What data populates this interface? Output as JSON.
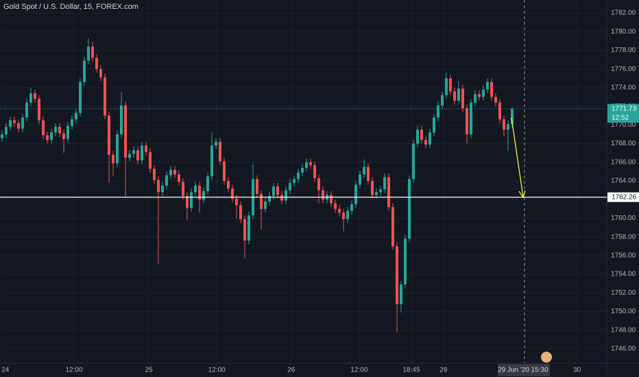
{
  "chart_data": {
    "type": "candlestick",
    "title": "Gold Spot / U.S. Dollar, 15, FOREX.com",
    "up_color": "#26a69a",
    "down_color": "#ef5350",
    "grid": true,
    "open": [
      1768.6,
      1769.0,
      1769.8,
      1770.5,
      1770.2,
      1769.6,
      1770.8,
      1772.4,
      1773.4,
      1772.8,
      1770.5,
      1768.9,
      1768.4,
      1769.2,
      1769.8,
      1769.1,
      1768.5,
      1769.9,
      1770.6,
      1771.3,
      1774.6,
      1776.9,
      1778.4,
      1777.2,
      1776.0,
      1775.1,
      1771.0,
      1766.8,
      1765.9,
      1769.0,
      1772.1,
      1766.5,
      1766.9,
      1767.3,
      1766.2,
      1767.8,
      1767.1,
      1765.3,
      1764.1,
      1762.8,
      1763.5,
      1764.6,
      1765.2,
      1764.7,
      1763.9,
      1762.4,
      1761.1,
      1762.8,
      1763.5,
      1762.0,
      1762.9,
      1764.5,
      1767.8,
      1768.2,
      1766.1,
      1764.0,
      1763.2,
      1762.1,
      1761.4,
      1759.9,
      1757.6,
      1760.3,
      1764.2,
      1762.6,
      1761.0,
      1761.8,
      1762.4,
      1763.4,
      1762.5,
      1761.9,
      1763.0,
      1763.8,
      1764.2,
      1764.9,
      1765.4,
      1766.0,
      1765.7,
      1764.3,
      1763.0,
      1762.0,
      1762.5,
      1761.6,
      1761.0,
      1760.6,
      1759.9,
      1760.8,
      1761.5,
      1763.6,
      1764.7,
      1765.5,
      1764.0,
      1762.5,
      1762.8,
      1763.1,
      1764.4,
      1761.2,
      1757.0,
      1750.8,
      1752.9,
      1757.8,
      1764.2,
      1768.0,
      1769.5,
      1768.4,
      1767.9,
      1769.2,
      1770.8,
      1772.1,
      1773.2,
      1775.0,
      1773.6,
      1772.6,
      1773.9,
      1771.8,
      1769.0,
      1772.4,
      1773.3,
      1773.0,
      1773.8,
      1774.6,
      1773.0,
      1772.4,
      1770.6,
      1769.5,
      1770.1
    ],
    "high": [
      1769.4,
      1770.2,
      1770.9,
      1770.9,
      1770.6,
      1771.2,
      1772.8,
      1774.0,
      1773.8,
      1773.2,
      1770.9,
      1769.3,
      1769.6,
      1770.2,
      1770.2,
      1769.5,
      1770.3,
      1771.0,
      1771.7,
      1775.0,
      1777.3,
      1779.3,
      1778.9,
      1777.6,
      1776.4,
      1775.5,
      1771.4,
      1767.2,
      1769.4,
      1773.5,
      1772.5,
      1767.3,
      1767.7,
      1767.7,
      1768.2,
      1768.2,
      1767.5,
      1765.7,
      1764.5,
      1763.9,
      1765.0,
      1765.6,
      1765.6,
      1765.1,
      1764.3,
      1762.8,
      1763.2,
      1763.9,
      1763.9,
      1763.3,
      1764.9,
      1769.2,
      1768.6,
      1768.6,
      1766.5,
      1764.4,
      1763.6,
      1762.5,
      1761.8,
      1760.3,
      1760.7,
      1765.8,
      1764.6,
      1763.0,
      1762.2,
      1762.8,
      1763.8,
      1763.8,
      1762.9,
      1763.4,
      1764.2,
      1764.6,
      1765.3,
      1765.8,
      1766.4,
      1766.4,
      1766.1,
      1764.7,
      1763.4,
      1762.9,
      1762.9,
      1762.0,
      1761.4,
      1761.0,
      1761.2,
      1761.9,
      1764.0,
      1765.1,
      1766.3,
      1765.9,
      1764.4,
      1763.2,
      1763.5,
      1764.8,
      1764.8,
      1761.6,
      1757.4,
      1753.3,
      1758.2,
      1764.6,
      1768.4,
      1769.9,
      1769.9,
      1768.8,
      1769.6,
      1771.2,
      1772.5,
      1773.6,
      1775.6,
      1775.4,
      1774.0,
      1774.7,
      1774.3,
      1772.2,
      1772.8,
      1773.7,
      1773.7,
      1774.2,
      1775.0,
      1775.0,
      1773.4,
      1772.8,
      1771.0,
      1770.5,
      1771.9
    ],
    "low": [
      1768.2,
      1768.6,
      1769.4,
      1769.8,
      1769.2,
      1769.2,
      1770.4,
      1772.0,
      1772.4,
      1770.1,
      1768.5,
      1768.0,
      1768.0,
      1768.8,
      1768.7,
      1767.0,
      1768.1,
      1769.5,
      1770.2,
      1770.9,
      1774.2,
      1776.5,
      1776.8,
      1775.6,
      1774.7,
      1770.6,
      1763.8,
      1764.5,
      1765.5,
      1768.6,
      1762.2,
      1766.1,
      1766.5,
      1765.8,
      1765.8,
      1766.7,
      1764.9,
      1763.7,
      1755.1,
      1762.4,
      1763.1,
      1764.2,
      1764.3,
      1763.5,
      1762.0,
      1759.8,
      1760.7,
      1762.4,
      1760.6,
      1761.6,
      1762.5,
      1764.1,
      1767.4,
      1765.7,
      1763.6,
      1762.8,
      1761.7,
      1760.0,
      1759.5,
      1755.7,
      1757.2,
      1759.9,
      1762.2,
      1758.8,
      1760.6,
      1761.4,
      1762.0,
      1762.1,
      1761.5,
      1761.5,
      1762.6,
      1763.4,
      1763.8,
      1764.5,
      1765.0,
      1765.3,
      1763.9,
      1761.6,
      1761.6,
      1761.6,
      1761.2,
      1760.6,
      1760.2,
      1758.6,
      1759.5,
      1760.4,
      1761.1,
      1763.2,
      1764.3,
      1763.6,
      1762.1,
      1762.1,
      1762.4,
      1762.7,
      1760.8,
      1756.6,
      1747.8,
      1749.9,
      1752.5,
      1757.4,
      1763.8,
      1767.6,
      1768.0,
      1767.5,
      1767.5,
      1768.8,
      1770.4,
      1771.7,
      1772.8,
      1773.2,
      1772.2,
      1772.2,
      1771.4,
      1768.0,
      1768.6,
      1772.0,
      1772.6,
      1772.6,
      1773.4,
      1772.6,
      1772.0,
      1770.2,
      1768.8,
      1767.2,
      1769.7
    ],
    "close": [
      1769.0,
      1769.8,
      1770.5,
      1770.2,
      1769.6,
      1770.8,
      1772.4,
      1773.4,
      1772.8,
      1770.5,
      1768.9,
      1768.4,
      1769.2,
      1769.8,
      1769.1,
      1768.5,
      1769.9,
      1770.6,
      1771.3,
      1774.6,
      1776.9,
      1778.4,
      1777.2,
      1776.0,
      1775.1,
      1771.0,
      1766.8,
      1765.9,
      1769.0,
      1772.1,
      1766.5,
      1766.9,
      1767.3,
      1766.2,
      1767.8,
      1767.1,
      1765.3,
      1764.1,
      1762.8,
      1763.5,
      1764.6,
      1765.2,
      1764.7,
      1763.9,
      1762.4,
      1761.1,
      1762.8,
      1763.5,
      1762.0,
      1762.9,
      1764.5,
      1767.8,
      1768.2,
      1766.1,
      1764.0,
      1763.2,
      1762.1,
      1761.4,
      1759.9,
      1757.6,
      1760.3,
      1764.2,
      1762.6,
      1761.0,
      1761.8,
      1762.4,
      1763.4,
      1762.5,
      1761.9,
      1763.0,
      1763.8,
      1764.2,
      1764.9,
      1765.4,
      1766.0,
      1765.7,
      1764.3,
      1763.0,
      1762.0,
      1762.5,
      1761.6,
      1761.0,
      1760.6,
      1759.9,
      1760.8,
      1761.5,
      1763.6,
      1764.7,
      1765.5,
      1764.0,
      1762.5,
      1762.8,
      1763.1,
      1764.4,
      1761.2,
      1757.0,
      1750.8,
      1752.9,
      1757.8,
      1764.2,
      1768.0,
      1769.5,
      1768.4,
      1767.9,
      1769.2,
      1770.8,
      1772.1,
      1773.2,
      1775.0,
      1773.6,
      1772.6,
      1773.9,
      1771.8,
      1769.0,
      1772.4,
      1773.3,
      1773.0,
      1773.8,
      1774.6,
      1773.0,
      1772.4,
      1770.6,
      1769.5,
      1770.1,
      1771.73
    ],
    "xlim": [
      -0.5,
      147
    ],
    "xticks": [
      {
        "value": 0.8,
        "label": "24"
      },
      {
        "value": 17.5,
        "label": "12:00"
      },
      {
        "value": 35.7,
        "label": "25"
      },
      {
        "value": 52.2,
        "label": "12:00"
      },
      {
        "value": 70.3,
        "label": "26"
      },
      {
        "value": 86.8,
        "label": "12:00"
      },
      {
        "value": 99.5,
        "label": "18:45"
      },
      {
        "value": 107.3,
        "label": "29"
      },
      {
        "value": 139.8,
        "label": "30"
      }
    ],
    "ylim": [
      1744.45,
      1783.4
    ],
    "yticks": [
      {
        "value": 1746,
        "label": "1746.00"
      },
      {
        "value": 1748,
        "label": "1748.00"
      },
      {
        "value": 1750,
        "label": "1750.00"
      },
      {
        "value": 1752,
        "label": "1752.00"
      },
      {
        "value": 1754,
        "label": "1754.00"
      },
      {
        "value": 1756,
        "label": "1756.00"
      },
      {
        "value": 1758,
        "label": "1758.00"
      },
      {
        "value": 1760,
        "label": "1760.00"
      },
      {
        "value": 1762,
        "label": "1762.00"
      },
      {
        "value": 1764,
        "label": "1764.00"
      },
      {
        "value": 1766,
        "label": "1766.00"
      },
      {
        "value": 1768,
        "label": "1768.00"
      },
      {
        "value": 1770,
        "label": "1770.00"
      },
      {
        "value": 1772,
        "label": "1772.00"
      },
      {
        "value": 1774,
        "label": "1774.00"
      },
      {
        "value": 1776,
        "label": "1776.00"
      },
      {
        "value": 1778,
        "label": "1778.00"
      },
      {
        "value": 1780,
        "label": "1780.00"
      },
      {
        "value": 1782,
        "label": "1782.00"
      }
    ],
    "horizontal_line": 1762.26,
    "countdown": "12:52",
    "crosshair_date": "29 Jun '20",
    "crosshair_time": "15:30"
  }
}
